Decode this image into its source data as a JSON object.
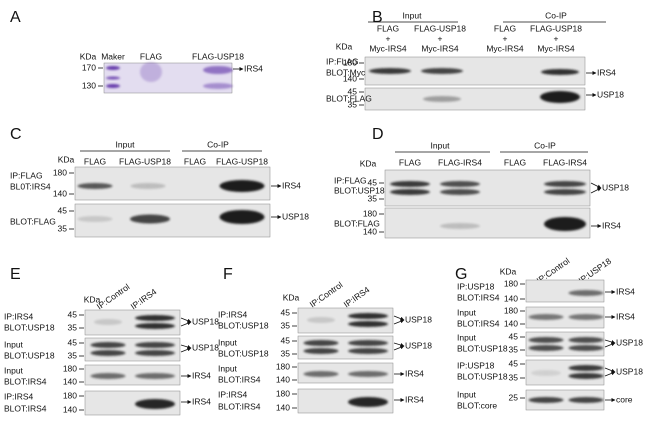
{
  "panels": [
    {
      "letter": "A",
      "kda": "KDa",
      "lanes": [
        "Maker",
        "FLAG",
        "FLAG-USP18"
      ],
      "blots": [
        {
          "markers": [
            "170",
            "130"
          ],
          "band": "IRS4"
        }
      ]
    },
    {
      "letter": "B",
      "groups": [
        "Input",
        "Co-IP"
      ],
      "kda": "KDa",
      "lanes": [
        [
          "FLAG",
          "+",
          "Myc-IRS4"
        ],
        [
          "FLAG-USP18",
          "+",
          "Myc-IRS4"
        ],
        [
          "FLAG",
          "+",
          "Myc-IRS4"
        ],
        [
          "FLAG-USP18",
          "+",
          "Myc-IRS4"
        ]
      ],
      "blots": [
        {
          "label": [
            "IP:FLAG",
            "BLOT:Myc"
          ],
          "markers": [
            "180",
            "140"
          ],
          "band": "IRS4"
        },
        {
          "label": [
            "BLOT:FLAG"
          ],
          "markers": [
            "45",
            "35"
          ],
          "band": "USP18"
        }
      ]
    },
    {
      "letter": "C",
      "groups": [
        "Input",
        "Co-IP"
      ],
      "kda": "KDa",
      "lanes": [
        "FLAG",
        "FLAG-USP18",
        "FLAG",
        "FLAG-USP18"
      ],
      "blots": [
        {
          "label": [
            "IP:FLAG",
            "BL0T:IRS4"
          ],
          "markers": [
            "180",
            "140"
          ],
          "band": "IRS4"
        },
        {
          "label": [
            "BLOT:FLAG"
          ],
          "markers": [
            "45",
            "35"
          ],
          "band": "USP18"
        }
      ]
    },
    {
      "letter": "D",
      "groups": [
        "Input",
        "Co-IP"
      ],
      "kda": "KDa",
      "lanes": [
        "FLAG",
        "FLAG-IRS4",
        "FLAG",
        "FLAG-IRS4"
      ],
      "blots": [
        {
          "label": [
            "IP:FLAG",
            "BLOT:USP18"
          ],
          "markers": [
            "45",
            "35"
          ],
          "band": "USP18"
        },
        {
          "label": [
            "BLOT:FLAG"
          ],
          "markers": [
            "180",
            "140"
          ],
          "band": "IRS4"
        }
      ]
    },
    {
      "letter": "E",
      "kda": "KDa",
      "lanes": [
        "IP:Control",
        "IP:IRS4"
      ],
      "blots": [
        {
          "label": [
            "IP:IRS4",
            "BLOT:USP18"
          ],
          "markers": [
            "45",
            "35"
          ],
          "band": "USP18"
        },
        {
          "label": [
            "Input",
            "BLOT:USP18"
          ],
          "markers": [
            "45",
            "35"
          ],
          "band": "USP18"
        },
        {
          "label": [
            "Input",
            "BLOT:IRS4"
          ],
          "markers": [
            "180",
            "140"
          ],
          "band": "IRS4"
        },
        {
          "label": [
            "IP:IRS4",
            "BLOT:IRS4"
          ],
          "markers": [
            "180",
            "140"
          ],
          "band": "IRS4"
        }
      ]
    },
    {
      "letter": "F",
      "kda": "KDa",
      "lanes": [
        "IP:Control",
        "IP:IRS4"
      ],
      "blots": [
        {
          "label": [
            "IP:IRS4",
            "BLOT:USP18"
          ],
          "markers": [
            "45",
            "35"
          ],
          "band": "USP18"
        },
        {
          "label": [
            "Input",
            "BLOT:USP18"
          ],
          "markers": [
            "45",
            "35"
          ],
          "band": "USP18"
        },
        {
          "label": [
            "Input",
            "BLOT:IRS4"
          ],
          "markers": [
            "180",
            "140"
          ],
          "band": "IRS4"
        },
        {
          "label": [
            "IP:IRS4",
            "BLOT:IRS4"
          ],
          "markers": [
            "180",
            "140"
          ],
          "band": "IRS4"
        }
      ]
    },
    {
      "letter": "G",
      "kda": "KDa",
      "lanes": [
        "IP:Control",
        "IP:USP18"
      ],
      "blots": [
        {
          "label": [
            "IP:USP18",
            "BLOT:IRS4"
          ],
          "markers": [
            "180",
            "140"
          ],
          "band": "IRS4"
        },
        {
          "label": [
            "Input",
            "BLOT:IRS4"
          ],
          "markers": [
            "180",
            "140"
          ],
          "band": "IRS4"
        },
        {
          "label": [
            "Input",
            "BLOT:USP18"
          ],
          "markers": [
            "45",
            "35"
          ],
          "band": "USP18"
        },
        {
          "label": [
            "IP:USP18",
            "BLOT:USP18"
          ],
          "markers": [
            "45",
            "35"
          ],
          "band": "USP18"
        },
        {
          "label": [
            "Input",
            "BLOT:core"
          ],
          "markers": [
            "25"
          ],
          "band": "core"
        }
      ]
    }
  ]
}
